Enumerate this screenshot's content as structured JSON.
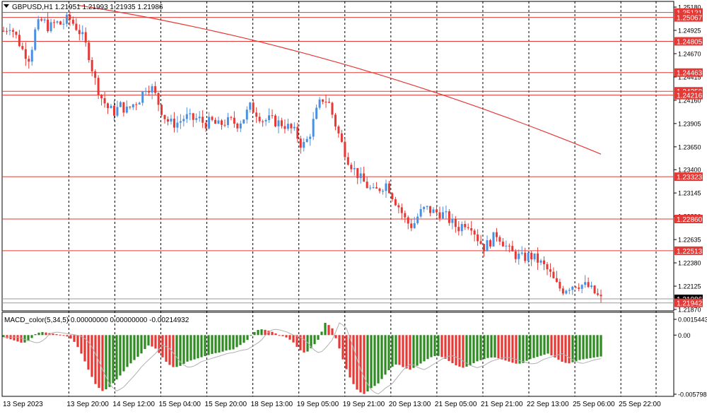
{
  "symbol_line": "GBPUSD,H1  1.21951 1.21993 1.21935 1.21986",
  "macd_label": "MACD_color(5,34,5) 0.00000000 0.00000000 -0.00214932",
  "colors": {
    "bull": "#4a90e2",
    "bear": "#e53935",
    "level": "#e53935",
    "macd_up": "#2e8b22",
    "macd_down": "#e53935",
    "signal": "#b0b0b0"
  },
  "chart_data": {
    "type": "candlestick",
    "symbol": "GBPUSD",
    "timeframe": "H1",
    "price_axis": {
      "ticks": [
        "1.25180",
        "1.24925",
        "1.24670",
        "1.24415",
        "1.24160",
        "1.23905",
        "1.23650",
        "1.23400",
        "1.23145",
        "1.22890",
        "1.22635",
        "1.22380",
        "1.22125",
        "1.21870"
      ],
      "ylim": [
        1.2187,
        1.2518
      ]
    },
    "level_lines": [
      "1.25121",
      "1.25067",
      "1.24805",
      "1.24463",
      "1.24258",
      "1.24216",
      "1.23323",
      "1.22860",
      "1.22513",
      "1.21986",
      "1.21942"
    ],
    "time_axis": [
      "13 Sep 2023",
      "13 Sep 20:00",
      "14 Sep 12:00",
      "15 Sep 04:00",
      "15 Sep 20:00",
      "18 Sep 13:00",
      "19 Sep 05:00",
      "19 Sep 21:00",
      "20 Sep 13:00",
      "21 Sep 05:00",
      "21 Sep 21:00",
      "22 Sep 13:00",
      "25 Sep 06:00",
      "25 Sep 22:00"
    ],
    "moving_average": {
      "start": 1.252,
      "end": 1.2357
    },
    "close_path": [
      1.2492,
      1.2498,
      1.2485,
      1.247,
      1.2462,
      1.2496,
      1.2504,
      1.2495,
      1.2501,
      1.2499,
      1.2506,
      1.2498,
      1.2488,
      1.247,
      1.244,
      1.242,
      1.2408,
      1.2403,
      1.241,
      1.2405,
      1.2412,
      1.2418,
      1.2432,
      1.2428,
      1.241,
      1.2395,
      1.239,
      1.2392,
      1.2398,
      1.2395,
      1.2396,
      1.239,
      1.2393,
      1.2388,
      1.2392,
      1.2393,
      1.239,
      1.2397,
      1.2409,
      1.2402,
      1.2394,
      1.2395,
      1.2392,
      1.239,
      1.2386,
      1.238,
      1.2365,
      1.2375,
      1.24,
      1.2418,
      1.2415,
      1.2392,
      1.237,
      1.2352,
      1.234,
      1.233,
      1.2322,
      1.2315,
      1.232,
      1.2325,
      1.231,
      1.2298,
      1.2283,
      1.2278,
      1.2292,
      1.2298,
      1.2294,
      1.2293,
      1.229,
      1.2282,
      1.2276,
      1.2282,
      1.228,
      1.2265,
      1.2255,
      1.2262,
      1.227,
      1.226,
      1.225,
      1.2246,
      1.2243,
      1.2246,
      1.2242,
      1.2236,
      1.2228,
      1.2215,
      1.2208,
      1.2212,
      1.2215,
      1.2214,
      1.2212,
      1.2205,
      1.2198
    ],
    "macd_axis": [
      "0.0015443",
      "0.00",
      "-0.0057983"
    ],
    "macd_ylim": [
      -0.0057983,
      0.0015443
    ],
    "macd_profile": [
      -0.0002,
      -0.0004,
      -0.0006,
      -0.0008,
      -0.0005,
      0.0002,
      0.0003,
      0.0002,
      0.0001,
      0.0,
      -0.0002,
      -0.0008,
      -0.002,
      -0.0035,
      -0.0048,
      -0.0055,
      -0.0052,
      -0.0045,
      -0.0038,
      -0.003,
      -0.0024,
      -0.0018,
      -0.001,
      -0.0012,
      -0.002,
      -0.0028,
      -0.0032,
      -0.003,
      -0.0026,
      -0.0024,
      -0.0022,
      -0.002,
      -0.0018,
      -0.0017,
      -0.0015,
      -0.0014,
      -0.001,
      -0.0006,
      0.0002,
      0.0006,
      0.0005,
      0.0003,
      0.0,
      -0.0002,
      -0.0006,
      -0.0014,
      -0.0018,
      -0.0012,
      -0.0004,
      0.0012,
      0.0008,
      -0.001,
      -0.003,
      -0.0045,
      -0.0055,
      -0.0058,
      -0.0052,
      -0.0048,
      -0.004,
      -0.0032,
      -0.0028,
      -0.0032,
      -0.0034,
      -0.003,
      -0.0026,
      -0.0022,
      -0.002,
      -0.0022,
      -0.0026,
      -0.003,
      -0.0032,
      -0.003,
      -0.0026,
      -0.0024,
      -0.0022,
      -0.0022,
      -0.0024,
      -0.0026,
      -0.0028,
      -0.0028,
      -0.0024,
      -0.0022,
      -0.002,
      -0.0018,
      -0.0022,
      -0.0026,
      -0.0028,
      -0.0026,
      -0.0024,
      -0.0023,
      -0.0022,
      -0.0021
    ]
  }
}
